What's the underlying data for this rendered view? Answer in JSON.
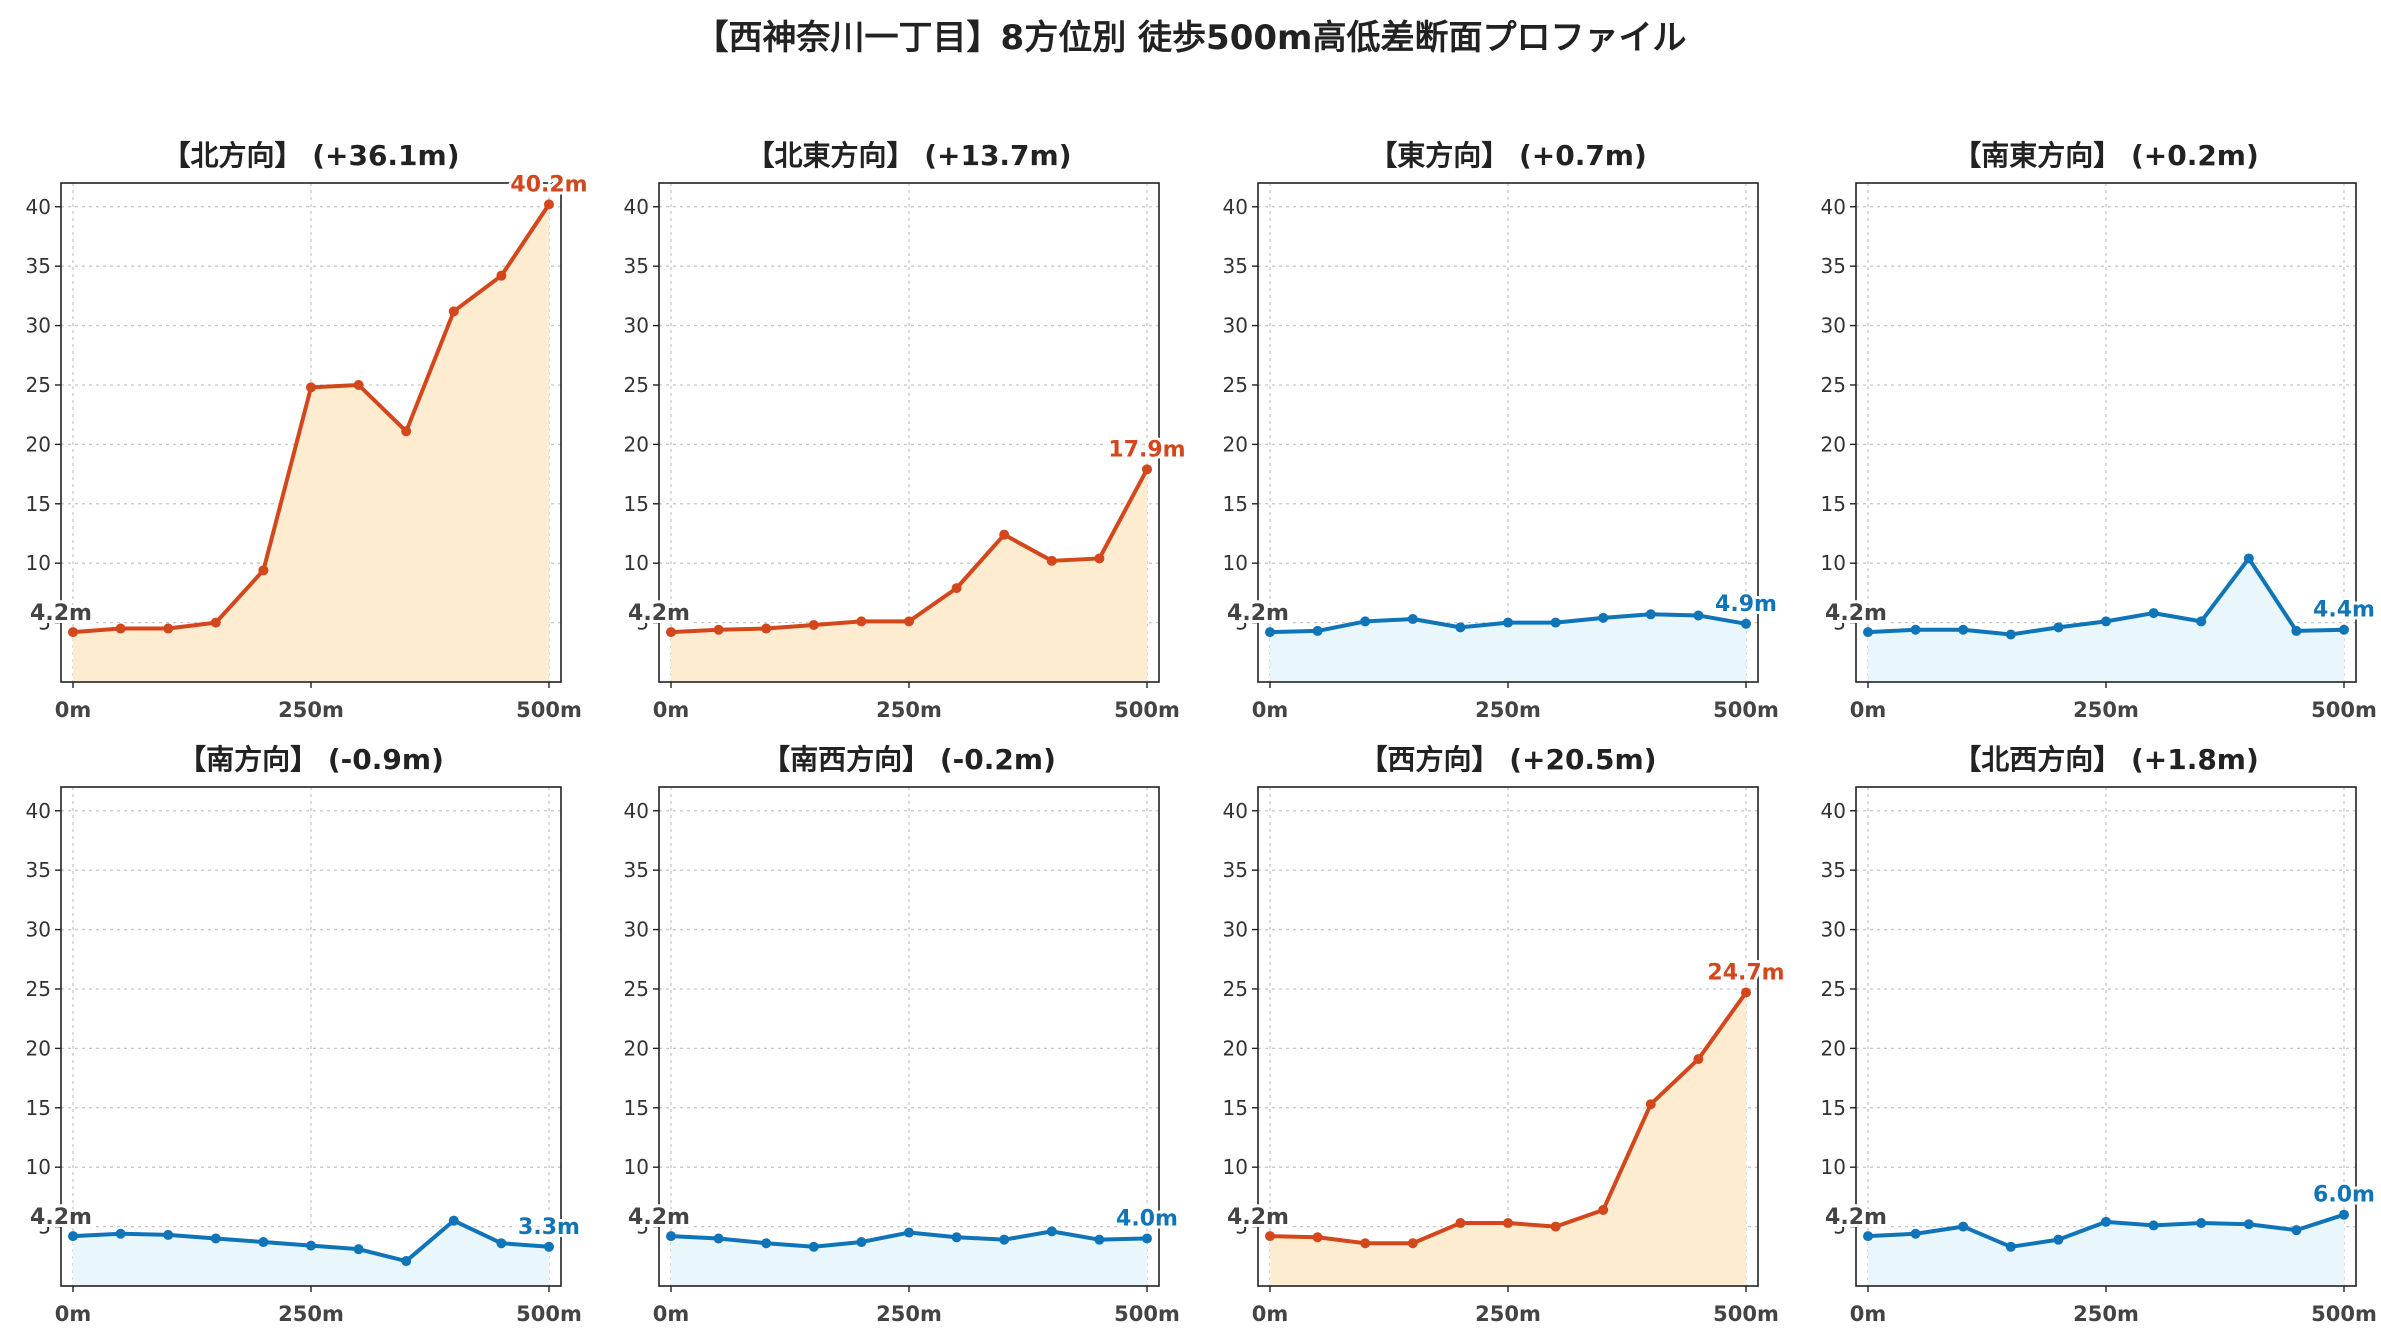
{
  "title": "【西神奈川一丁目】8方位別 徒歩500m高低差断面プロファイル",
  "colors": {
    "up_line": "#d4461b",
    "up_fill": "#fdeccf",
    "flat_line": "#0f74b8",
    "flat_fill": "#e9f6fb",
    "start_label": "#444444",
    "grid": "#c8c8c8"
  },
  "chart_data": [
    {
      "type": "line",
      "title": "【北方向】 (+36.1m)",
      "x": [
        0,
        50,
        100,
        150,
        200,
        250,
        300,
        350,
        400,
        450,
        500
      ],
      "series": [
        {
          "values": [
            4.2,
            4.5,
            4.5,
            5.0,
            9.4,
            24.8,
            25.0,
            21.1,
            31.2,
            34.2,
            40.2
          ]
        }
      ],
      "trend": "up",
      "start_label": "4.2m",
      "end_label": "40.2m",
      "xticks": [
        "0m",
        "250m",
        "500m"
      ],
      "ylim": [
        0,
        42
      ],
      "yticks": [
        5,
        10,
        15,
        20,
        25,
        30,
        35,
        40
      ],
      "grid": true
    },
    {
      "type": "line",
      "title": "【北東方向】 (+13.7m)",
      "x": [
        0,
        50,
        100,
        150,
        200,
        250,
        300,
        350,
        400,
        450,
        500
      ],
      "series": [
        {
          "values": [
            4.2,
            4.4,
            4.5,
            4.8,
            5.1,
            5.1,
            7.9,
            12.4,
            10.2,
            10.4,
            17.9
          ]
        }
      ],
      "trend": "up",
      "start_label": "4.2m",
      "end_label": "17.9m",
      "xticks": [
        "0m",
        "250m",
        "500m"
      ],
      "ylim": [
        0,
        42
      ],
      "yticks": [
        5,
        10,
        15,
        20,
        25,
        30,
        35,
        40
      ],
      "grid": true
    },
    {
      "type": "line",
      "title": "【東方向】 (+0.7m)",
      "x": [
        0,
        50,
        100,
        150,
        200,
        250,
        300,
        350,
        400,
        450,
        500
      ],
      "series": [
        {
          "values": [
            4.2,
            4.3,
            5.1,
            5.3,
            4.6,
            5.0,
            5.0,
            5.4,
            5.7,
            5.6,
            4.9
          ]
        }
      ],
      "trend": "flat",
      "start_label": "4.2m",
      "end_label": "4.9m",
      "xticks": [
        "0m",
        "250m",
        "500m"
      ],
      "ylim": [
        0,
        42
      ],
      "yticks": [
        5,
        10,
        15,
        20,
        25,
        30,
        35,
        40
      ],
      "grid": true
    },
    {
      "type": "line",
      "title": "【南東方向】 (+0.2m)",
      "x": [
        0,
        50,
        100,
        150,
        200,
        250,
        300,
        350,
        400,
        450,
        500
      ],
      "series": [
        {
          "values": [
            4.2,
            4.4,
            4.4,
            4.0,
            4.6,
            5.1,
            5.8,
            5.1,
            10.4,
            4.3,
            4.4
          ]
        }
      ],
      "trend": "flat",
      "start_label": "4.2m",
      "end_label": "4.4m",
      "xticks": [
        "0m",
        "250m",
        "500m"
      ],
      "ylim": [
        0,
        42
      ],
      "yticks": [
        5,
        10,
        15,
        20,
        25,
        30,
        35,
        40
      ],
      "grid": true
    },
    {
      "type": "line",
      "title": "【南方向】 (-0.9m)",
      "x": [
        0,
        50,
        100,
        150,
        200,
        250,
        300,
        350,
        400,
        450,
        500
      ],
      "series": [
        {
          "values": [
            4.2,
            4.4,
            4.3,
            4.0,
            3.7,
            3.4,
            3.1,
            2.1,
            5.5,
            3.6,
            3.3
          ]
        }
      ],
      "trend": "flat",
      "start_label": "4.2m",
      "end_label": "3.3m",
      "xticks": [
        "0m",
        "250m",
        "500m"
      ],
      "ylim": [
        0,
        42
      ],
      "yticks": [
        5,
        10,
        15,
        20,
        25,
        30,
        35,
        40
      ],
      "grid": true
    },
    {
      "type": "line",
      "title": "【南西方向】 (-0.2m)",
      "x": [
        0,
        50,
        100,
        150,
        200,
        250,
        300,
        350,
        400,
        450,
        500
      ],
      "series": [
        {
          "values": [
            4.2,
            4.0,
            3.6,
            3.3,
            3.7,
            4.5,
            4.1,
            3.9,
            4.6,
            3.9,
            4.0
          ]
        }
      ],
      "trend": "flat",
      "start_label": "4.2m",
      "end_label": "4.0m",
      "xticks": [
        "0m",
        "250m",
        "500m"
      ],
      "ylim": [
        0,
        42
      ],
      "yticks": [
        5,
        10,
        15,
        20,
        25,
        30,
        35,
        40
      ],
      "grid": true
    },
    {
      "type": "line",
      "title": "【西方向】 (+20.5m)",
      "x": [
        0,
        50,
        100,
        150,
        200,
        250,
        300,
        350,
        400,
        450,
        500
      ],
      "series": [
        {
          "values": [
            4.2,
            4.1,
            3.6,
            3.6,
            5.3,
            5.3,
            5.0,
            6.4,
            15.3,
            19.1,
            24.7
          ]
        }
      ],
      "trend": "up",
      "start_label": "4.2m",
      "end_label": "24.7m",
      "xticks": [
        "0m",
        "250m",
        "500m"
      ],
      "ylim": [
        0,
        42
      ],
      "yticks": [
        5,
        10,
        15,
        20,
        25,
        30,
        35,
        40
      ],
      "grid": true
    },
    {
      "type": "line",
      "title": "【北西方向】 (+1.8m)",
      "x": [
        0,
        50,
        100,
        150,
        200,
        250,
        300,
        350,
        400,
        450,
        500
      ],
      "series": [
        {
          "values": [
            4.2,
            4.4,
            5.0,
            3.3,
            3.9,
            5.4,
            5.1,
            5.3,
            5.2,
            4.7,
            6.0
          ]
        }
      ],
      "trend": "flat",
      "start_label": "4.2m",
      "end_label": "6.0m",
      "xticks": [
        "0m",
        "250m",
        "500m"
      ],
      "ylim": [
        0,
        42
      ],
      "yticks": [
        5,
        10,
        15,
        20,
        25,
        30,
        35,
        40
      ],
      "grid": true
    }
  ]
}
